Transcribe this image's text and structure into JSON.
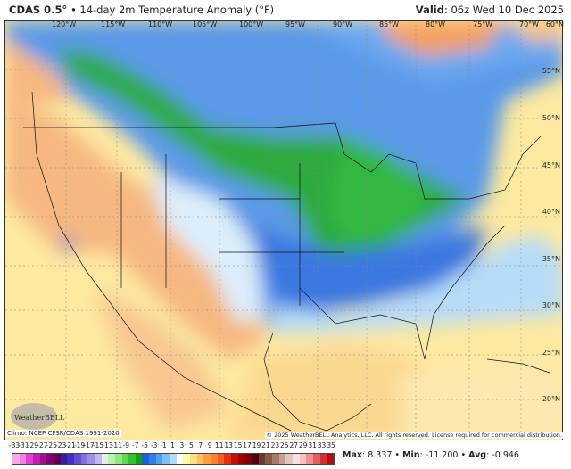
{
  "header": {
    "model": "CDAS 0.5°",
    "title": " • 14-day 2m Temperature Anomaly (°F)",
    "valid_label": "Valid",
    "valid_value": ": 06z Wed 10 Dec 2025"
  },
  "map": {
    "longitudes": [
      "120°W",
      "115°W",
      "110°W",
      "105°W",
      "100°W",
      "95°W",
      "90°W",
      "85°W",
      "80°W",
      "75°W",
      "70°W"
    ],
    "latitudes": [
      "60°N",
      "55°N",
      "50°N",
      "45°N",
      "40°N",
      "35°N",
      "30°N",
      "25°N",
      "20°N"
    ],
    "climo": "Climo: NCEP CFSR/CDAS 1991-2020",
    "copyright": "© 2025 WeatherBELL Analytics, LLC. All rights reserved. License required for commercial distribution.",
    "logo": "WeatherBELL"
  },
  "colorbar": {
    "ticks": [
      "-33",
      "-31",
      "-29",
      "-27",
      "-25",
      "-23",
      "-21",
      "-19",
      "-17",
      "-15",
      "-13",
      "-11",
      "-9",
      "-7",
      "-5",
      "-3",
      "-1",
      "1",
      "3",
      "5",
      "7",
      "9",
      "11",
      "13",
      "15",
      "17",
      "19",
      "21",
      "23",
      "25",
      "27",
      "29",
      "31",
      "33",
      "35"
    ],
    "colors": [
      "#f7a8e8",
      "#f080e0",
      "#e040d0",
      "#c020b0",
      "#a01090",
      "#800070",
      "#600050",
      "#3020a0",
      "#4030c0",
      "#6050d0",
      "#8070e0",
      "#a090ec",
      "#c0b8f4",
      "#e0f0e0",
      "#c0f0b0",
      "#90e880",
      "#60d850",
      "#30c030",
      "#10a010",
      "#2060d8",
      "#3080e8",
      "#50a0f0",
      "#80c0f4",
      "#b0dcf8",
      "#ffffff",
      "#ffffa0",
      "#ffe080",
      "#ffc060",
      "#ffa040",
      "#ff8030",
      "#f06020",
      "#e03010",
      "#c01000",
      "#a00000",
      "#800000",
      "#500010",
      "#6a3a30",
      "#8a5a48",
      "#a87a68",
      "#c8a090",
      "#e0c8c0",
      "#f8e0e0",
      "#f8c0c0",
      "#f09090",
      "#e06060",
      "#d03030",
      "#b01010"
    ],
    "stats": {
      "max_label": "Max",
      "max": ": 8.337 • ",
      "min_label": "Min",
      "min": ": -11.200 • ",
      "avg_label": "Avg",
      "avg": ": -0.946"
    }
  }
}
